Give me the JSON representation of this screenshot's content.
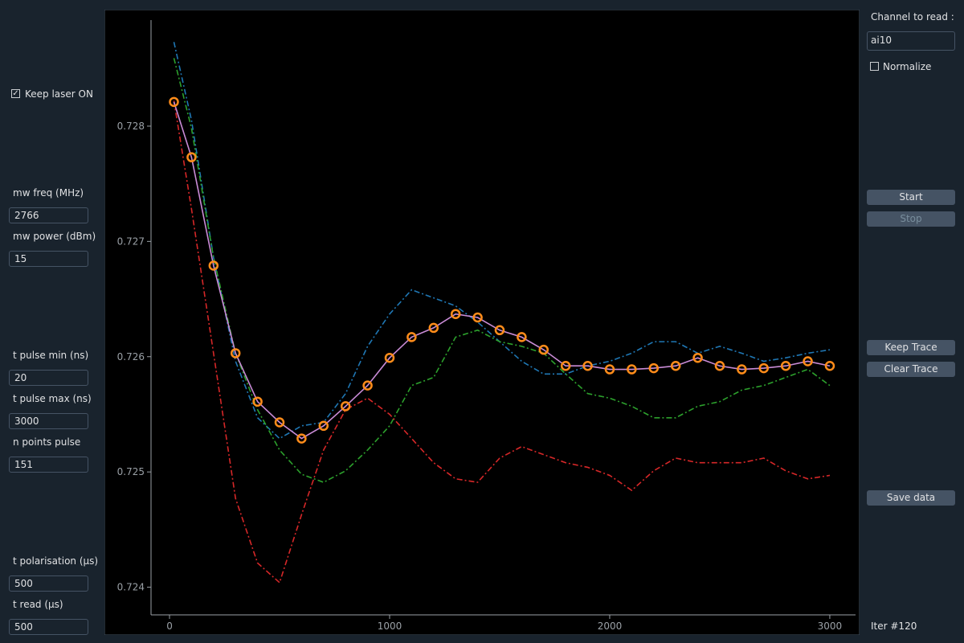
{
  "left_panel": {
    "keep_laser": {
      "label": "Keep laser ON",
      "checked": true
    },
    "fields": [
      {
        "label": "mw freq (MHz)",
        "value": "2766"
      },
      {
        "label": "mw power (dBm)",
        "value": "15"
      },
      {
        "label": "t pulse min (ns)",
        "value": "20"
      },
      {
        "label": "t pulse max (ns)",
        "value": "3000"
      },
      {
        "label": "n points pulse",
        "value": "151"
      },
      {
        "label": "t polarisation (µs)",
        "value": "500"
      },
      {
        "label": "t read (µs)",
        "value": "500"
      }
    ]
  },
  "right_panel": {
    "channel_label": "Channel to read :",
    "channel": "ai10",
    "normalize": {
      "label": "Normalize",
      "checked": false
    },
    "buttons": [
      {
        "label": "Start",
        "enabled": true
      },
      {
        "label": "Stop",
        "enabled": false
      },
      {
        "label": "Keep Trace",
        "enabled": true
      },
      {
        "label": "Clear Trace",
        "enabled": true
      },
      {
        "label": "Save data",
        "enabled": true
      }
    ],
    "status": "Iter #120"
  },
  "chart_data": {
    "type": "line",
    "x": [
      20,
      100,
      200,
      300,
      400,
      500,
      600,
      700,
      800,
      900,
      1000,
      1100,
      1200,
      1300,
      1400,
      1500,
      1600,
      1700,
      1800,
      1900,
      2000,
      2100,
      2200,
      2300,
      2400,
      2500,
      2600,
      2700,
      2800,
      2900,
      3000
    ],
    "series": [
      {
        "color": "#1f77b4",
        "linestyle": "dashdot",
        "values": [
          0.72873,
          0.72805,
          0.72686,
          0.72596,
          0.72547,
          0.72529,
          0.7254,
          0.72543,
          0.72568,
          0.72609,
          0.72637,
          0.72658,
          0.72651,
          0.72644,
          0.7263,
          0.72613,
          0.72596,
          0.72585,
          0.72585,
          0.72592,
          0.72596,
          0.72603,
          0.72613,
          0.72613,
          0.72603,
          0.72609,
          0.72603,
          0.72596,
          0.72599,
          0.72603,
          0.72606
        ]
      },
      {
        "color": "#2ca02c",
        "linestyle": "dashdot",
        "values": [
          0.72859,
          0.72798,
          0.72686,
          0.72603,
          0.72554,
          0.72519,
          0.72498,
          0.72491,
          0.72501,
          0.72519,
          0.7254,
          0.72575,
          0.72582,
          0.72617,
          0.72623,
          0.72613,
          0.72609,
          0.72603,
          0.72585,
          0.72568,
          0.72564,
          0.72557,
          0.72547,
          0.72547,
          0.72557,
          0.72561,
          0.72571,
          0.72575,
          0.72582,
          0.72589,
          0.72575
        ]
      },
      {
        "color": "#d62728",
        "linestyle": "dashdot",
        "values": [
          0.72822,
          0.72728,
          0.72603,
          0.72477,
          0.72421,
          0.72404,
          0.72463,
          0.72519,
          0.72554,
          0.72564,
          0.7255,
          0.72529,
          0.72508,
          0.72494,
          0.72491,
          0.72512,
          0.72522,
          0.72515,
          0.72508,
          0.72504,
          0.72497,
          0.72484,
          0.72501,
          0.72512,
          0.72508,
          0.72508,
          0.72508,
          0.72512,
          0.72501,
          0.72494,
          0.72497
        ]
      },
      {
        "color": "#c98bd6",
        "marker_color": "#ff8c1a",
        "linestyle": "solid",
        "values": [
          0.72821,
          0.72773,
          0.72679,
          0.72603,
          0.72561,
          0.72543,
          0.72529,
          0.7254,
          0.72557,
          0.72575,
          0.72599,
          0.72617,
          0.72625,
          0.72637,
          0.72634,
          0.72623,
          0.72617,
          0.72606,
          0.72592,
          0.72592,
          0.72589,
          0.72589,
          0.7259,
          0.72592,
          0.72599,
          0.72592,
          0.72589,
          0.7259,
          0.72592,
          0.72596,
          0.72592
        ]
      }
    ],
    "xlim": [
      -84,
      3117
    ],
    "ylim": [
      0.72376,
      0.72892
    ],
    "xticks": [
      0,
      1000,
      2000,
      3000
    ],
    "yticks": [
      0.724,
      0.725,
      0.726,
      0.727,
      0.728
    ],
    "grid": false
  }
}
